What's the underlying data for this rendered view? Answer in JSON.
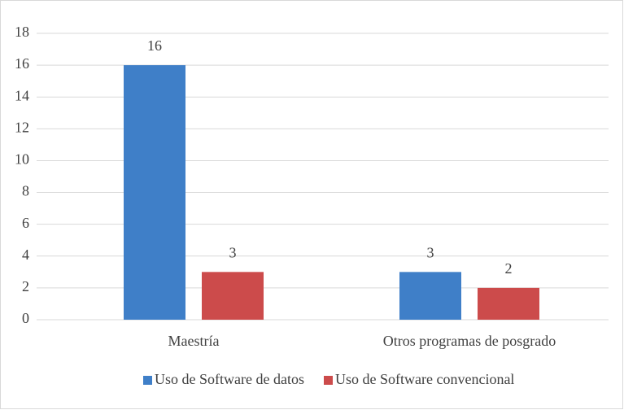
{
  "chart_data": {
    "type": "bar",
    "categories": [
      "Maestría",
      "Otros programas de posgrado"
    ],
    "series": [
      {
        "name": "Uso de Software de datos",
        "color": "#3f7fc8",
        "values": [
          16,
          3
        ]
      },
      {
        "name": "Uso de Software convencional",
        "color": "#cc4b4b",
        "values": [
          3,
          2
        ]
      }
    ],
    "ylim": [
      0,
      18
    ],
    "yticks": [
      0,
      2,
      4,
      6,
      8,
      10,
      12,
      14,
      16,
      18
    ],
    "grid": true,
    "legend": "bottom"
  }
}
